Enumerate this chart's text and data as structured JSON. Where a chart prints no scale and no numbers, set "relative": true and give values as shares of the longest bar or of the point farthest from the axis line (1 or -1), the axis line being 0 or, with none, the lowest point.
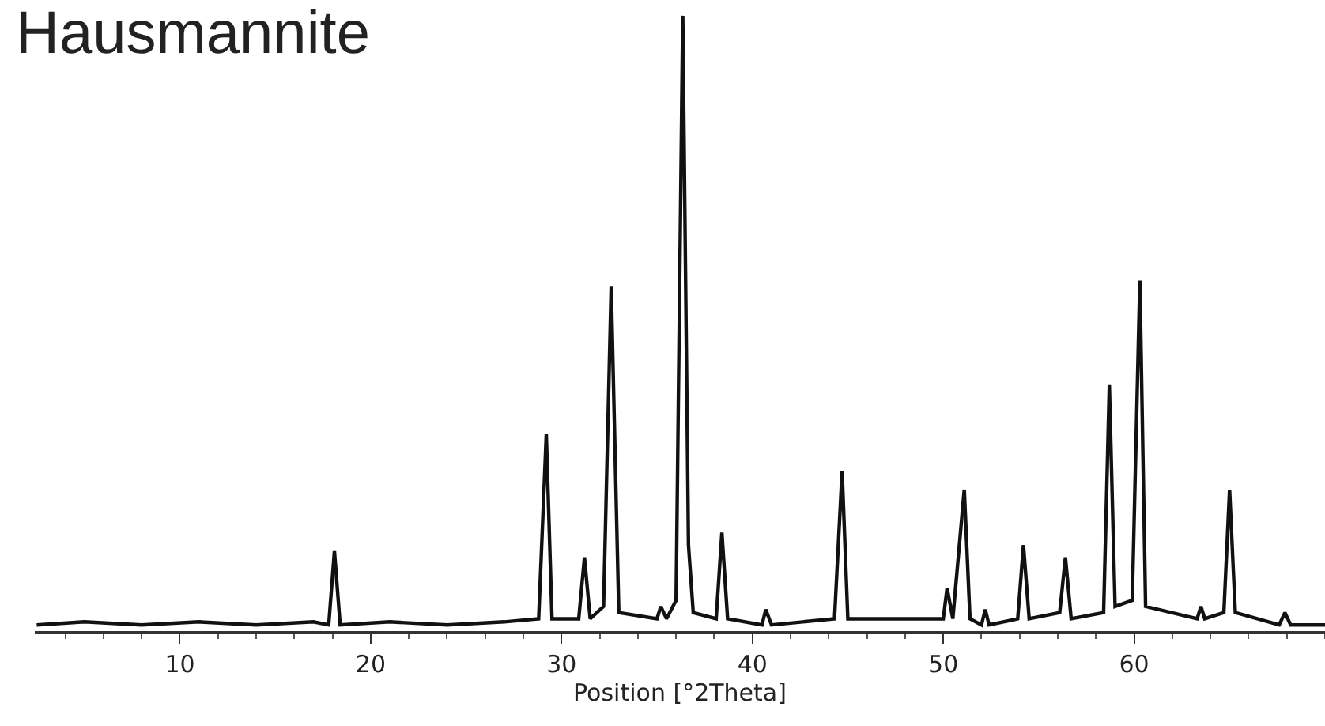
{
  "chart_data": {
    "type": "line",
    "title": "Hausmannite",
    "xlabel": "Position [°2Theta]",
    "relative": true,
    "color": "#111111",
    "x": [
      2.5,
      5,
      8,
      11,
      14,
      17,
      17.8,
      18.1,
      18.4,
      21,
      24,
      27,
      28.8,
      29.2,
      29.5,
      30.9,
      31.2,
      31.5,
      32.2,
      32.6,
      33.0,
      35.0,
      35.2,
      35.5,
      36.0,
      36.35,
      36.65,
      36.9,
      38.1,
      38.4,
      38.7,
      40.5,
      40.7,
      41.0,
      44.3,
      44.7,
      45.0,
      50.0,
      50.2,
      50.5,
      51.1,
      51.4,
      52.0,
      52.2,
      52.4,
      53.9,
      54.2,
      54.5,
      56.1,
      56.4,
      56.7,
      58.4,
      58.7,
      59.0,
      59.9,
      60.3,
      60.6,
      63.3,
      63.5,
      63.7,
      64.7,
      65.0,
      65.3,
      67.6,
      67.9,
      68.2,
      70
    ],
    "values": [
      0.01,
      0.015,
      0.01,
      0.015,
      0.01,
      0.015,
      0.01,
      0.13,
      0.01,
      0.015,
      0.01,
      0.015,
      0.02,
      0.32,
      0.02,
      0.02,
      0.12,
      0.02,
      0.04,
      0.56,
      0.03,
      0.02,
      0.04,
      0.02,
      0.05,
      1.0,
      0.14,
      0.03,
      0.02,
      0.16,
      0.02,
      0.01,
      0.035,
      0.01,
      0.02,
      0.26,
      0.02,
      0.02,
      0.07,
      0.02,
      0.23,
      0.02,
      0.01,
      0.035,
      0.01,
      0.02,
      0.14,
      0.02,
      0.03,
      0.12,
      0.02,
      0.03,
      0.4,
      0.04,
      0.05,
      0.57,
      0.04,
      0.02,
      0.04,
      0.02,
      0.03,
      0.23,
      0.03,
      0.01,
      0.03,
      0.01,
      0.01
    ],
    "xlim": [
      2.4,
      70
    ],
    "xticks": [
      10,
      20,
      30,
      40,
      50,
      60
    ],
    "marker": "none",
    "line_style": "solid"
  }
}
